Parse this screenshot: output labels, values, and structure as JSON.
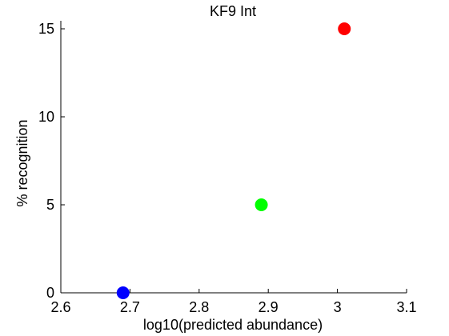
{
  "chart_data": {
    "type": "scatter",
    "title": "KF9 Int",
    "xlabel": "log10(predicted abundance)",
    "ylabel": "% recognition",
    "xlim": [
      2.6,
      3.1
    ],
    "ylim": [
      0,
      15
    ],
    "xticks": [
      2.6,
      2.7,
      2.8,
      2.9,
      3.0,
      3.1
    ],
    "xtick_labels": [
      "2.6",
      "2.7",
      "2.8",
      "2.9",
      "3",
      "3.1"
    ],
    "yticks": [
      0,
      5,
      10,
      15
    ],
    "ytick_labels": [
      "0",
      "5",
      "10",
      "15"
    ],
    "grid": false,
    "points": [
      {
        "x": 2.69,
        "y": 0,
        "color": "#0000ff"
      },
      {
        "x": 2.89,
        "y": 5,
        "color": "#00ff00"
      },
      {
        "x": 3.01,
        "y": 15,
        "color": "#ff0000"
      }
    ]
  }
}
